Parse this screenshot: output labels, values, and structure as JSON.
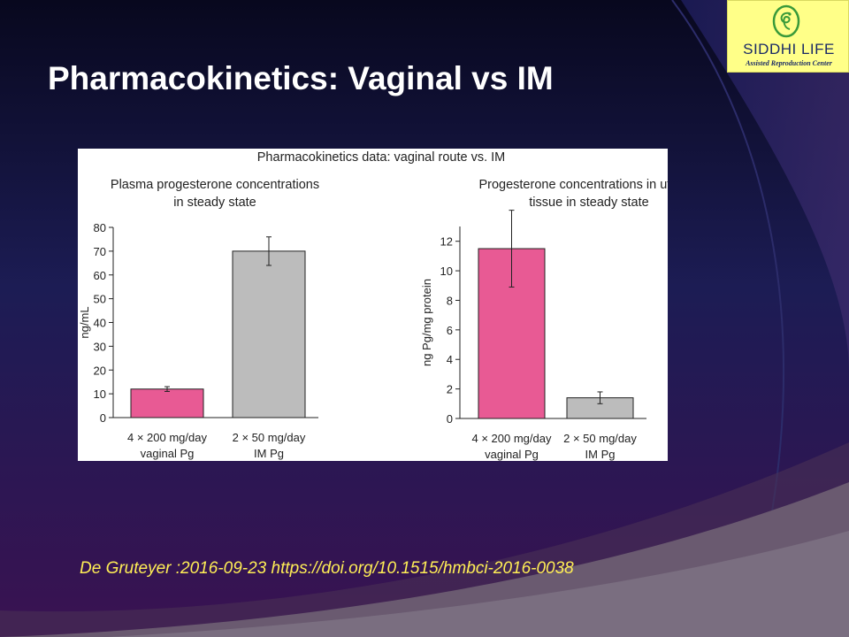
{
  "slide": {
    "title": "Pharmacokinetics: Vaginal vs IM",
    "citation": "De Gruteyer :2016-09-23  https://doi.org/10.1515/hmbci-2016-0038",
    "background_colors": [
      "#0a0a26",
      "#1e1e5a",
      "#3a1550",
      "#6a4a6a",
      "#7a6a7a"
    ]
  },
  "logo": {
    "name": "SIDDHI LIFE",
    "tagline": "Assisted Reproduction Center",
    "background": "#ffff88",
    "icon": "embryo-icon"
  },
  "figure": {
    "heading": "Pharmacokinetics data: vaginal route vs. IM"
  },
  "chart_data": [
    {
      "type": "bar",
      "title_lines": [
        "Plasma progesterone concentrations",
        "in steady state"
      ],
      "ylabel": "ng/mL",
      "ylim": [
        0,
        80
      ],
      "yticks": [
        0,
        10,
        20,
        30,
        40,
        50,
        60,
        70,
        80
      ],
      "categories": [
        [
          "4 × 200 mg/day",
          "vaginal Pg"
        ],
        [
          "2 × 50 mg/day",
          "IM Pg"
        ]
      ],
      "values": [
        12,
        70
      ],
      "errors": [
        1,
        6
      ],
      "colors": [
        "#e85a94",
        "#bcbcbc"
      ],
      "grid": false
    },
    {
      "type": "bar",
      "title_lines": [
        "Progesterone concentrations in uterine",
        "tissue in steady state"
      ],
      "ylabel": "ng Pg/mg protein",
      "ylim": [
        0,
        13
      ],
      "yticks": [
        0,
        2,
        4,
        6,
        8,
        10,
        12
      ],
      "categories": [
        [
          "4 × 200 mg/day",
          "vaginal Pg"
        ],
        [
          "2 × 50 mg/day",
          "IM Pg"
        ]
      ],
      "values": [
        11.5,
        1.4
      ],
      "errors": [
        2.6,
        0.4
      ],
      "colors": [
        "#e85a94",
        "#bcbcbc"
      ],
      "grid": false
    }
  ]
}
